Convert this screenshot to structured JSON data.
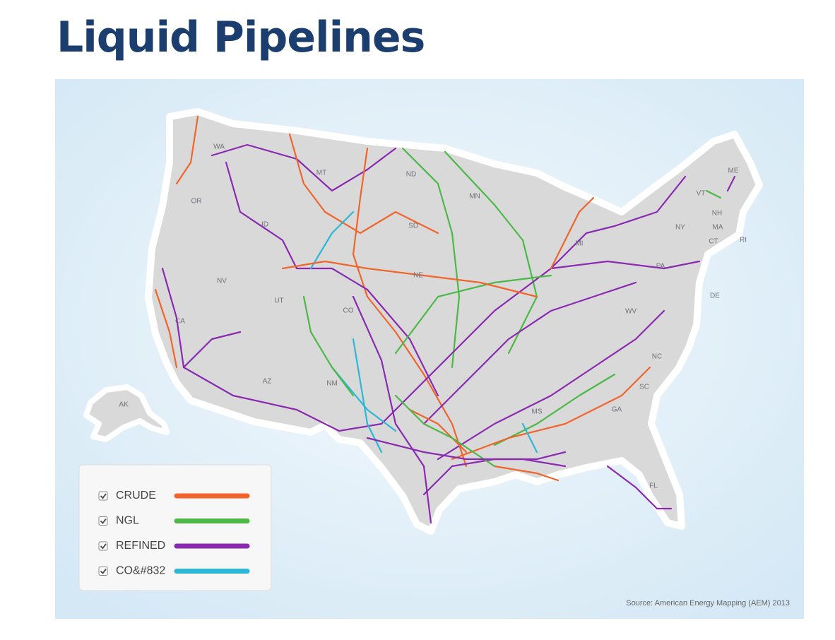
{
  "title": "Liquid Pipelines",
  "map": {
    "state_labels": [
      "WA",
      "OR",
      "ID",
      "MT",
      "ND",
      "SD",
      "NE",
      "MN",
      "NV",
      "UT",
      "CO",
      "CA",
      "AZ",
      "NM",
      "AK",
      "ME",
      "VT",
      "NH",
      "MA",
      "CT",
      "RI",
      "NY",
      "PA",
      "DE",
      "WV",
      "NC",
      "SC",
      "GA",
      "MS",
      "FL",
      "MI"
    ],
    "legend": [
      {
        "label": "CRUDE",
        "color": "#f0652b"
      },
      {
        "label": "NGL",
        "color": "#4cb847"
      },
      {
        "label": "REFINED",
        "color": "#8a2ab0"
      },
      {
        "label": "CO&#832",
        "color": "#2bb7d5"
      }
    ],
    "source": "Source: American Energy Mapping (AEM) 2013"
  }
}
